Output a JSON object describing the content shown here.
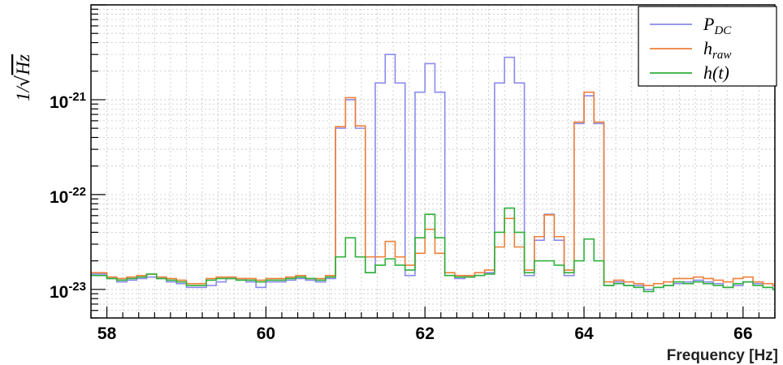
{
  "chart_data": {
    "type": "line",
    "step": true,
    "ylog": true,
    "title": "",
    "xlabel": "Frequency [Hz]",
    "ylabel": "1/√Hz",
    "ylabel_parts": {
      "prefix": "1/",
      "radicand": "Hz"
    },
    "xlim": [
      57.8,
      66.4
    ],
    "ylim": [
      5e-24,
      1e-20
    ],
    "x_ticks": [
      58,
      60,
      62,
      64,
      66
    ],
    "x_tick_labels": [
      "58",
      "60",
      "62",
      "64",
      "66"
    ],
    "y_ticks": [
      1e-23,
      1e-22,
      1e-21
    ],
    "y_tick_labels": [
      {
        "base": "10",
        "exp": "-23"
      },
      {
        "base": "10",
        "exp": "-22"
      },
      {
        "base": "10",
        "exp": "-21"
      }
    ],
    "grid": true,
    "legend_position": "top-right",
    "bin_width": 0.125,
    "x_start": 57.75,
    "series": [
      {
        "name": "P_DC",
        "label_main": "P",
        "label_sub": "DC",
        "color": "#8a8aee",
        "values": [
          1.45e-23,
          1.45e-23,
          1.3e-23,
          1.2e-23,
          1.25e-23,
          1.3e-23,
          1.35e-23,
          1.3e-23,
          1.2e-23,
          1.15e-23,
          1.05e-23,
          1.05e-23,
          1.1e-23,
          1.2e-23,
          1.3e-23,
          1.3e-23,
          1.2e-23,
          1.05e-23,
          1.2e-23,
          1.2e-23,
          1.25e-23,
          1.3e-23,
          1.25e-23,
          1.2e-23,
          1.3e-23,
          5e-22,
          1e-21,
          5e-22,
          1.5e-23,
          1.5e-21,
          3e-21,
          1.5e-21,
          1.4e-23,
          1.2e-21,
          2.4e-21,
          1.2e-21,
          1.4e-23,
          1.3e-23,
          1.35e-23,
          1.4e-23,
          1.5e-23,
          1.5e-21,
          2.8e-21,
          1.5e-21,
          1.4e-23,
          3.3e-23,
          6.2e-23,
          3.3e-23,
          1.4e-23,
          5.6e-22,
          1.1e-21,
          5.6e-22,
          1.1e-23,
          1.2e-23,
          1.1e-23,
          1.1e-23,
          1e-23,
          1.05e-23,
          1.1e-23,
          1.15e-23,
          1.2e-23,
          1.25e-23,
          1.2e-23,
          1.15e-23,
          1.05e-23,
          1.1e-23,
          1.2e-23,
          1.15e-23,
          1.05e-23,
          1e-23,
          1.1e-23
        ]
      },
      {
        "name": "h_raw",
        "label_main": "h",
        "label_sub": "raw",
        "color": "#f07f38",
        "values": [
          1.5e-23,
          1.5e-23,
          1.35e-23,
          1.3e-23,
          1.35e-23,
          1.4e-23,
          1.45e-23,
          1.35e-23,
          1.3e-23,
          1.25e-23,
          1.15e-23,
          1.15e-23,
          1.3e-23,
          1.35e-23,
          1.35e-23,
          1.3e-23,
          1.3e-23,
          1.25e-23,
          1.3e-23,
          1.3e-23,
          1.35e-23,
          1.4e-23,
          1.3e-23,
          1.3e-23,
          1.4e-23,
          5.2e-22,
          1.05e-21,
          5.3e-22,
          2.2e-23,
          2.2e-23,
          3.2e-23,
          2.2e-23,
          1.8e-23,
          2.4e-23,
          4.3e-23,
          2.4e-23,
          1.5e-23,
          1.4e-23,
          1.4e-23,
          1.5e-23,
          1.6e-23,
          2.8e-23,
          5.6e-23,
          2.8e-23,
          1.6e-23,
          3.6e-23,
          6.1e-23,
          3.6e-23,
          1.6e-23,
          5.8e-22,
          1.2e-21,
          5.8e-22,
          1.2e-23,
          1.25e-23,
          1.2e-23,
          1.15e-23,
          1.1e-23,
          1.15e-23,
          1.2e-23,
          1.3e-23,
          1.3e-23,
          1.35e-23,
          1.3e-23,
          1.25e-23,
          1.2e-23,
          1.3e-23,
          1.35e-23,
          1.2e-23,
          1.15e-23,
          1.1e-23,
          1.2e-23
        ]
      },
      {
        "name": "h(t)",
        "label_main": "h(t)",
        "label_sub": "",
        "color": "#2fb13a",
        "values": [
          1.4e-23,
          1.4e-23,
          1.3e-23,
          1.25e-23,
          1.3e-23,
          1.35e-23,
          1.45e-23,
          1.3e-23,
          1.25e-23,
          1.2e-23,
          1.1e-23,
          1.1e-23,
          1.25e-23,
          1.3e-23,
          1.3e-23,
          1.25e-23,
          1.25e-23,
          1.2e-23,
          1.25e-23,
          1.25e-23,
          1.3e-23,
          1.35e-23,
          1.3e-23,
          1.25e-23,
          1.35e-23,
          2.2e-23,
          3.5e-23,
          2.2e-23,
          1.5e-23,
          1.8e-23,
          2.1e-23,
          1.8e-23,
          1.6e-23,
          3.5e-23,
          6.2e-23,
          3.5e-23,
          1.4e-23,
          1.35e-23,
          1.35e-23,
          1.4e-23,
          1.45e-23,
          4e-23,
          7.2e-23,
          4e-23,
          1.5e-23,
          2e-23,
          2e-23,
          1.8e-23,
          1.5e-23,
          2e-23,
          3.4e-23,
          2e-23,
          1.1e-23,
          1.15e-23,
          1.1e-23,
          1.05e-23,
          9.5e-24,
          1.05e-23,
          1.1e-23,
          1.2e-23,
          1.15e-23,
          1.2e-23,
          1.15e-23,
          1.1e-23,
          1.05e-23,
          1.15e-23,
          1.2e-23,
          1.1e-23,
          1.05e-23,
          1e-23,
          1.15e-23
        ]
      }
    ]
  }
}
